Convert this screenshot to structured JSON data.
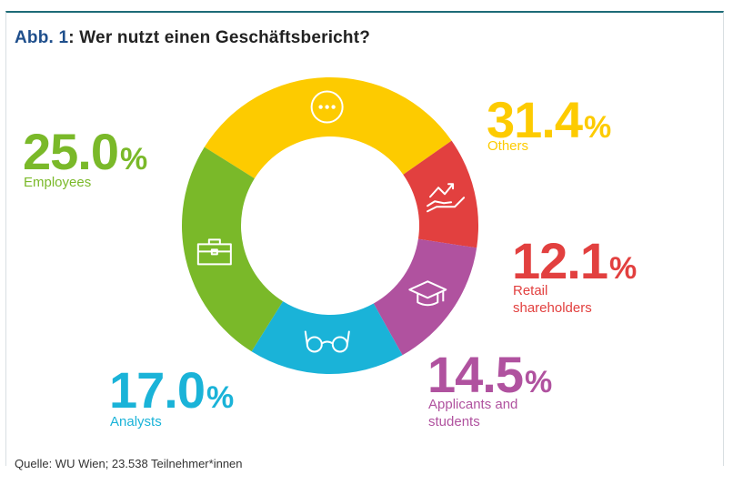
{
  "header": {
    "title_prefix": "Abb. 1",
    "title_text": ": Wer nutzt einen Geschäftsbericht?"
  },
  "source": "Quelle: WU Wien; 23.538 Teilnehmer*innen",
  "chart_data": {
    "type": "pie",
    "donut": true,
    "title": "Abb. 1: Wer nutzt einen Geschäftsbericht?",
    "unit": "%",
    "slices": [
      {
        "label": "Others",
        "value": 31.4,
        "display": "31.4",
        "color": "#fdcb00",
        "icon": "more-dots-icon"
      },
      {
        "label": "Retail\nshareholders",
        "value": 12.1,
        "display": "12.1",
        "color": "#e2403f",
        "icon": "hand-chart-icon"
      },
      {
        "label": "Applicants and\nstudents",
        "value": 14.5,
        "display": "14.5",
        "color": "#b0529f",
        "icon": "graduation-cap-icon"
      },
      {
        "label": "Analysts",
        "value": 17.0,
        "display": "17.0",
        "color": "#1ab3d8",
        "icon": "glasses-icon"
      },
      {
        "label": "Employees",
        "value": 25.0,
        "display": "25.0",
        "color": "#7ab929",
        "icon": "briefcase-icon"
      }
    ],
    "legend": "none"
  }
}
